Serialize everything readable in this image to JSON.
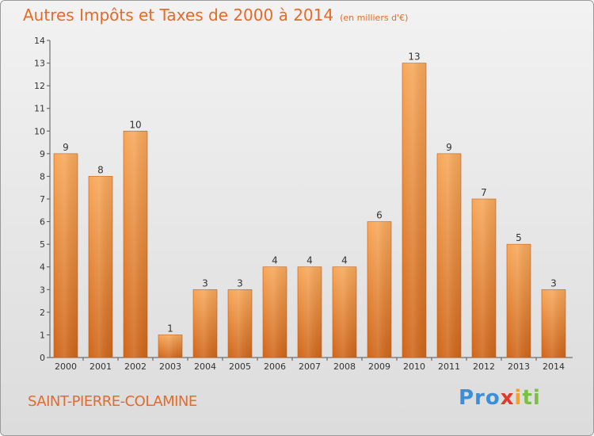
{
  "header": {
    "title": "Autres Impôts et Taxes de 2000 à 2014",
    "subtitle": "(en milliers d'€)"
  },
  "footer": {
    "city": "SAINT-PIERRE-COLAMINE",
    "logo": [
      "Pro",
      "x",
      "i",
      "ti"
    ]
  },
  "colors": {
    "accent": "#e56a2a",
    "bar_top": "#f7a85a",
    "bar_bottom": "#d0661a"
  },
  "chart_data": {
    "type": "bar",
    "title": "Autres Impôts et Taxes de 2000 à 2014",
    "subtitle": "(en milliers d'€)",
    "xlabel": "",
    "ylabel": "",
    "categories": [
      "2000",
      "2001",
      "2002",
      "2003",
      "2004",
      "2005",
      "2006",
      "2007",
      "2008",
      "2009",
      "2010",
      "2011",
      "2012",
      "2013",
      "2014"
    ],
    "values": [
      9,
      8,
      10,
      1,
      3,
      3,
      4,
      4,
      4,
      6,
      13,
      9,
      7,
      5,
      3
    ],
    "data_labels": [
      "9",
      "8",
      "10",
      "1",
      "3",
      "3",
      "4",
      "4",
      "4",
      "6",
      "13",
      "9",
      "7",
      "5",
      "3"
    ],
    "ylim": [
      0,
      14
    ],
    "yticks": [
      "0",
      "1",
      "2",
      "3",
      "4",
      "5",
      "6",
      "7",
      "8",
      "9",
      "10",
      "11",
      "12",
      "13",
      "14"
    ],
    "grid": false,
    "legend": "none"
  }
}
